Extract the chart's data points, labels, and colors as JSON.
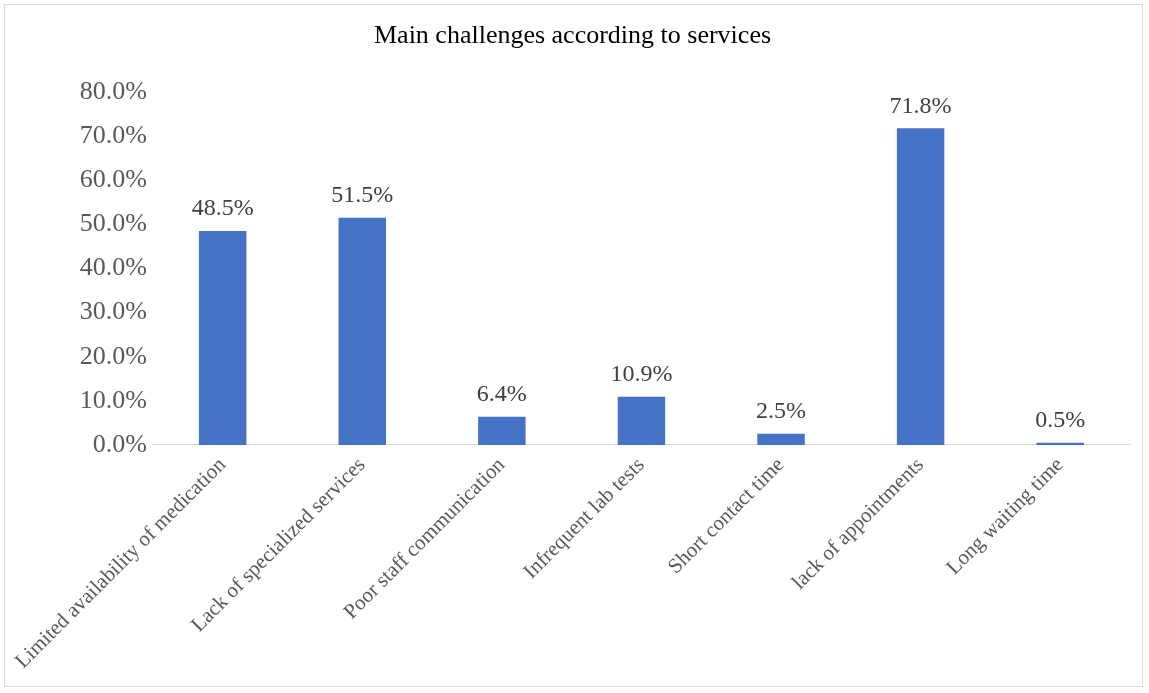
{
  "chart_data": {
    "type": "bar",
    "title": "Main challenges according to services",
    "categories": [
      "Limited availability of medication",
      "Lack of specialized services",
      "Poor staff communication",
      "Infrequent lab tests",
      "Short contact time",
      "lack of appointments",
      "Long waiting time"
    ],
    "values": [
      48.5,
      51.5,
      6.4,
      10.9,
      2.5,
      71.8,
      0.5
    ],
    "value_labels": [
      "48.5%",
      "51.5%",
      "6.4%",
      "10.9%",
      "2.5%",
      "71.8%",
      "0.5%"
    ],
    "color": "#4472c4",
    "ylim": [
      0,
      80
    ],
    "yticks": [
      {
        "value": 0,
        "label": "0.0%"
      },
      {
        "value": 10,
        "label": "10.0%"
      },
      {
        "value": 20,
        "label": "20.0%"
      },
      {
        "value": 30,
        "label": "30.0%"
      },
      {
        "value": 40,
        "label": "40.0%"
      },
      {
        "value": 50,
        "label": "50.0%"
      },
      {
        "value": 60,
        "label": "60.0%"
      },
      {
        "value": 70,
        "label": "70.0%"
      },
      {
        "value": 80,
        "label": "80.0%"
      }
    ],
    "grid": false,
    "legend": false
  }
}
